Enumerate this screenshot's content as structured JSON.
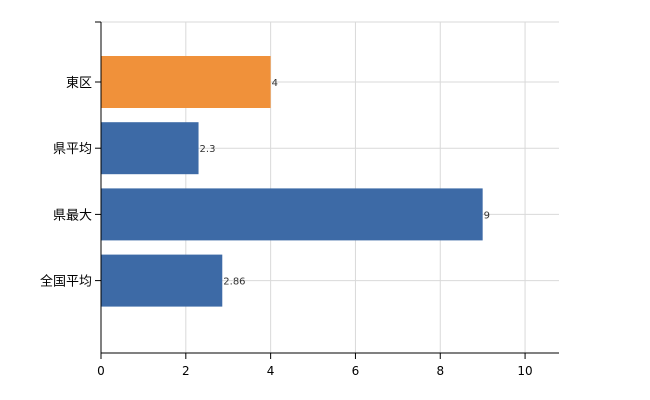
{
  "chart_data": {
    "type": "bar",
    "orientation": "horizontal",
    "categories": [
      "東区",
      "県平均",
      "県最大",
      "全国平均"
    ],
    "values": [
      4,
      2.3,
      9,
      2.86
    ],
    "value_labels": [
      "4",
      "2.3",
      "9",
      "2.86"
    ],
    "bar_colors": [
      "#f0913a",
      "#3d6aa6",
      "#3d6aa6",
      "#3d6aa6"
    ],
    "xlim": [
      0,
      10.8
    ],
    "xticks": [
      0,
      2,
      4,
      6,
      8,
      10
    ],
    "xtick_labels": [
      "0",
      "2",
      "4",
      "6",
      "8",
      "10"
    ],
    "grid": true,
    "legend": "none",
    "title": "",
    "xlabel": "",
    "ylabel": ""
  }
}
